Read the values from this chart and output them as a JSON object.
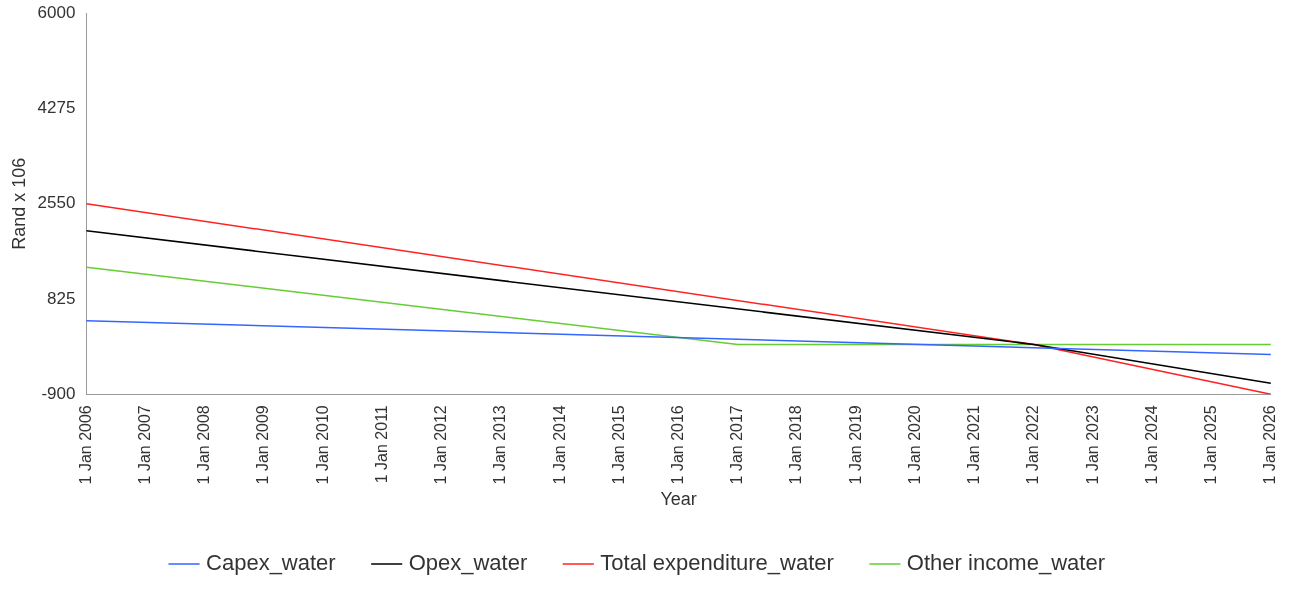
{
  "chart_data": {
    "type": "line",
    "xlabel": "Year",
    "ylabel": "Rand x 106",
    "categories": [
      "1 Jan 2006",
      "1 Jan 2007",
      "1 Jan 2008",
      "1 Jan 2009",
      "1 Jan 2010",
      "1 Jan 2011",
      "1 Jan 2012",
      "1 Jan 2013",
      "1 Jan 2014",
      "1 Jan 2015",
      "1 Jan 2016",
      "1 Jan 2017",
      "1 Jan 2018",
      "1 Jan 2019",
      "1 Jan 2020",
      "1 Jan 2021",
      "1 Jan 2022",
      "1 Jan 2023",
      "1 Jan 2024",
      "1 Jan 2025",
      "1 Jan 2026"
    ],
    "series": [
      {
        "name": "Capex_water",
        "color": "#3366ff",
        "values": [
          430,
          null,
          null,
          null,
          null,
          null,
          null,
          null,
          null,
          null,
          null,
          null,
          null,
          null,
          null,
          null,
          null,
          null,
          null,
          null,
          -180
        ]
      },
      {
        "name": "Opex_water",
        "color": "#000000",
        "values": [
          2060,
          null,
          null,
          null,
          null,
          null,
          null,
          null,
          null,
          null,
          null,
          null,
          null,
          null,
          null,
          null,
          0,
          null,
          null,
          null,
          -700
        ]
      },
      {
        "name": "Total expenditure_water",
        "color": "#ff2222",
        "values": [
          2550,
          null,
          null,
          null,
          null,
          null,
          null,
          null,
          null,
          null,
          null,
          null,
          null,
          null,
          null,
          null,
          0,
          null,
          null,
          null,
          -900
        ]
      },
      {
        "name": "Other income_water",
        "color": "#66cc33",
        "values": [
          1400,
          null,
          null,
          null,
          null,
          null,
          null,
          null,
          null,
          null,
          null,
          0,
          null,
          null,
          null,
          null,
          null,
          null,
          null,
          null,
          0
        ]
      }
    ],
    "ylim": [
      -900,
      6000
    ],
    "yticks": [
      -900,
      825,
      2550,
      4275,
      6000
    ],
    "grid": false,
    "legend": "bottom",
    "marker": "none",
    "line_style": "solid"
  }
}
